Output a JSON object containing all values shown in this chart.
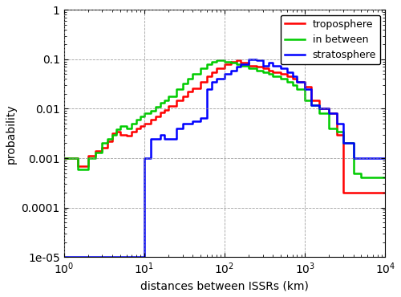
{
  "xlabel": "distances between ISSRs (km)",
  "ylabel": "probability",
  "xlim": [
    1,
    10000
  ],
  "ylim": [
    1e-05,
    1
  ],
  "legend_labels": [
    "troposphere",
    "in between",
    "stratosphere"
  ],
  "legend_colors": [
    "#ff0000",
    "#00cc00",
    "#0000ff"
  ],
  "line_width": 1.8,
  "troposphere_x": [
    1.0,
    1.5,
    2.0,
    2.5,
    3.0,
    3.5,
    4.0,
    4.5,
    5.0,
    6.0,
    7.0,
    8.0,
    9.0,
    10.0,
    12.0,
    14.0,
    16.0,
    18.0,
    20.0,
    25.0,
    30.0,
    35.0,
    40.0,
    50.0,
    60.0,
    70.0,
    80.0,
    100.0,
    120.0,
    140.0,
    160.0,
    200.0,
    250.0,
    300.0,
    350.0,
    400.0,
    500.0,
    600.0,
    700.0,
    800.0,
    1000.0,
    1200.0,
    1500.0,
    2000.0,
    2500.0,
    3000.0,
    4000.0,
    5000.0,
    6000.0,
    7000.0,
    10000.0
  ],
  "troposphere_y": [
    0.001,
    0.0007,
    0.0011,
    0.0014,
    0.0016,
    0.0022,
    0.0032,
    0.0035,
    0.003,
    0.0028,
    0.0035,
    0.004,
    0.0045,
    0.005,
    0.006,
    0.007,
    0.0085,
    0.0095,
    0.0115,
    0.015,
    0.018,
    0.022,
    0.026,
    0.035,
    0.045,
    0.055,
    0.065,
    0.08,
    0.09,
    0.095,
    0.085,
    0.075,
    0.07,
    0.065,
    0.06,
    0.055,
    0.05,
    0.045,
    0.04,
    0.035,
    0.028,
    0.015,
    0.01,
    0.008,
    0.003,
    0.0002,
    0.0002,
    0.0002,
    0.0002,
    0.0002,
    0.0002
  ],
  "inbetween_x": [
    1.0,
    1.5,
    2.0,
    2.5,
    3.0,
    3.5,
    4.0,
    4.5,
    5.0,
    6.0,
    7.0,
    8.0,
    9.0,
    10.0,
    12.0,
    14.0,
    16.0,
    18.0,
    20.0,
    25.0,
    30.0,
    35.0,
    40.0,
    50.0,
    60.0,
    70.0,
    80.0,
    100.0,
    120.0,
    140.0,
    160.0,
    200.0,
    250.0,
    300.0,
    350.0,
    400.0,
    500.0,
    600.0,
    700.0,
    800.0,
    1000.0,
    1200.0,
    1500.0,
    2000.0,
    2500.0,
    3000.0,
    4000.0,
    5000.0,
    6000.0,
    7000.0,
    10000.0
  ],
  "inbetween_y": [
    0.001,
    0.0006,
    0.001,
    0.0013,
    0.002,
    0.0025,
    0.003,
    0.0038,
    0.0045,
    0.004,
    0.005,
    0.006,
    0.007,
    0.008,
    0.009,
    0.011,
    0.013,
    0.015,
    0.018,
    0.025,
    0.032,
    0.04,
    0.05,
    0.065,
    0.08,
    0.09,
    0.095,
    0.09,
    0.085,
    0.08,
    0.075,
    0.065,
    0.06,
    0.055,
    0.05,
    0.045,
    0.04,
    0.035,
    0.03,
    0.025,
    0.015,
    0.012,
    0.008,
    0.004,
    0.0035,
    0.002,
    0.0005,
    0.0004,
    0.0004,
    0.0004,
    0.0004
  ],
  "stratosphere_x": [
    1.0,
    5.0,
    6.0,
    7.0,
    8.0,
    9.0,
    10.0,
    11.0,
    12.0,
    14.0,
    16.0,
    18.0,
    20.0,
    25.0,
    30.0,
    40.0,
    50.0,
    60.0,
    70.0,
    80.0,
    100.0,
    120.0,
    140.0,
    160.0,
    200.0,
    250.0,
    300.0,
    350.0,
    400.0,
    500.0,
    600.0,
    700.0,
    800.0,
    1000.0,
    1200.0,
    1500.0,
    2000.0,
    2500.0,
    3000.0,
    4000.0,
    5000.0,
    6000.0,
    7000.0,
    10000.0
  ],
  "stratosphere_y": [
    1e-05,
    1e-05,
    1e-05,
    1e-05,
    1e-05,
    1e-05,
    0.001,
    0.001,
    0.0025,
    0.0025,
    0.003,
    0.0025,
    0.0025,
    0.004,
    0.005,
    0.0055,
    0.0065,
    0.025,
    0.035,
    0.04,
    0.05,
    0.06,
    0.07,
    0.08,
    0.1,
    0.095,
    0.075,
    0.085,
    0.075,
    0.065,
    0.055,
    0.045,
    0.035,
    0.025,
    0.012,
    0.01,
    0.008,
    0.005,
    0.002,
    0.001,
    0.001,
    0.001,
    0.001,
    0.001
  ],
  "background_color": "#ffffff",
  "grid_color": "#888888"
}
